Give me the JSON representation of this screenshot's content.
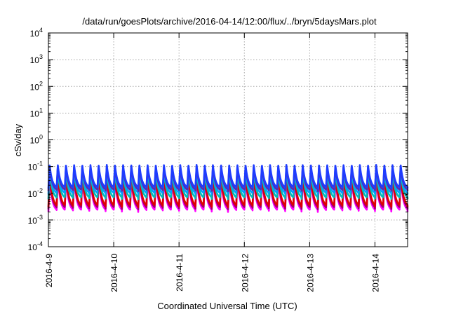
{
  "chart_data": {
    "type": "line",
    "title": "/data/run/goesPlots/archive/2016-04-14/12:00/flux/../bryn/5daysMars.plot",
    "xlabel": "Coordinated Universal Time (UTC)",
    "ylabel": "cSv/day",
    "x_type": "date",
    "xlim": [
      "2016-04-09",
      "2016-04-14T12:00"
    ],
    "x_ticks": [
      "2016-4-9",
      "2016-4-10",
      "2016-4-11",
      "2016-4-12",
      "2016-4-13",
      "2016-4-14"
    ],
    "y_scale": "log",
    "ylim": [
      0.0001,
      10000
    ],
    "y_ticks": [
      {
        "base": "10",
        "exp": "4",
        "value": 10000
      },
      {
        "base": "10",
        "exp": "3",
        "value": 1000
      },
      {
        "base": "10",
        "exp": "2",
        "value": 100
      },
      {
        "base": "10",
        "exp": "1",
        "value": 10
      },
      {
        "base": "10",
        "exp": "0",
        "value": 1
      },
      {
        "base": "10",
        "exp": "-1",
        "value": 0.1
      },
      {
        "base": "10",
        "exp": "-2",
        "value": 0.01
      },
      {
        "base": "10",
        "exp": "-3",
        "value": 0.001
      },
      {
        "base": "10",
        "exp": "-4",
        "value": 0.0001
      }
    ],
    "grid": true,
    "legend": "none",
    "pattern": {
      "period_hours": 3,
      "start": "2016-04-09T00:00"
    },
    "series": [
      {
        "color": "#ff00ff",
        "peak": 0.04,
        "trough": 0.002
      },
      {
        "color": "#a0006e",
        "peak": 0.05,
        "trough": 0.0025
      },
      {
        "color": "#e00000",
        "peak": 0.06,
        "trough": 0.003
      },
      {
        "color": "#00bcbc",
        "peak": 0.075,
        "trough": 0.006
      },
      {
        "color": "#00a0ff",
        "peak": 0.09,
        "trough": 0.009
      },
      {
        "color": "#5a2ab0",
        "peak": 0.1,
        "trough": 0.012
      },
      {
        "color": "#1e3cff",
        "peak": 0.115,
        "trough": 0.015
      }
    ]
  }
}
